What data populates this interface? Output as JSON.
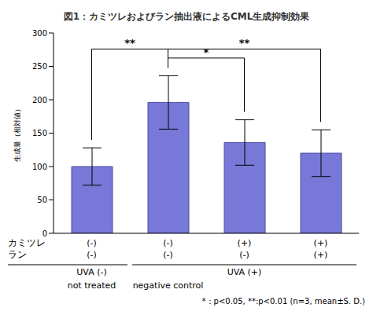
{
  "chart_data": {
    "type": "bar",
    "title": "図1：カミツレおよびラン抽出液によるCML生成抑制効果",
    "y_label": "生成量（相対値）",
    "categories": [
      "not treated",
      "negative control",
      null,
      null
    ],
    "values": [
      100,
      196,
      136,
      120
    ],
    "errors": [
      28,
      40,
      34,
      35
    ],
    "color": "#7878d8",
    "ylim": [
      0,
      300
    ],
    "yticks": [
      0,
      50,
      100,
      150,
      200,
      250,
      300
    ],
    "grid": false,
    "factors": [
      {
        "name": "カミツレ",
        "labels": [
          "(-)",
          "(-)",
          "(+)",
          "(+)"
        ]
      },
      {
        "name": "ラン",
        "labels": [
          "(-)",
          "(-)",
          "(-)",
          "(+)"
        ]
      }
    ],
    "groups": [
      {
        "label": "UVA (-)",
        "size": 1
      },
      {
        "label": "UVA (+)",
        "size": 3
      }
    ],
    "annotations": [
      {
        "from": 0,
        "to": 1,
        "label": "**"
      },
      {
        "from": 1,
        "to": 2,
        "label": "*"
      },
      {
        "from": 1,
        "to": 3,
        "label": "**"
      }
    ],
    "footnote": "*：p<0.05, **:p<0.01 (n=3, mean±S. D.)"
  }
}
